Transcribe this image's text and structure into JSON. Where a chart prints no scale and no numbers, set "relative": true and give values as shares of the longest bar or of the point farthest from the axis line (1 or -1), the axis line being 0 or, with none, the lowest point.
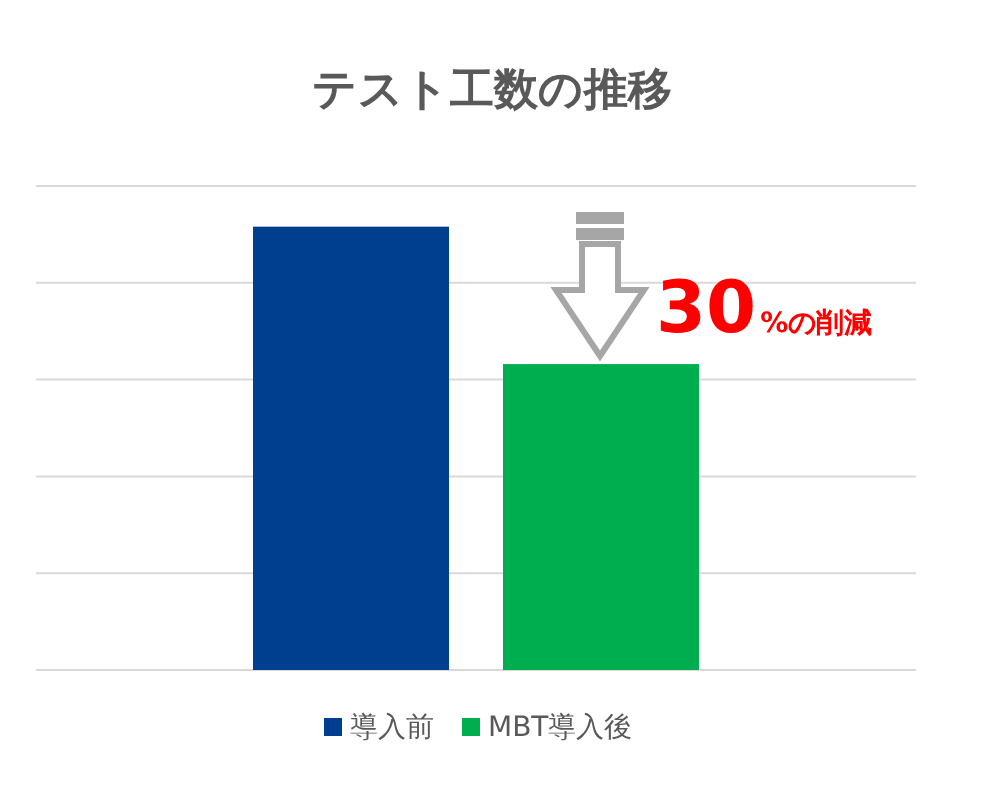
{
  "chart_data": {
    "type": "bar",
    "title": "テスト工数の推移",
    "categories": [
      null
    ],
    "relative": true,
    "grid": "y",
    "legend": "bottom",
    "series": [
      {
        "name": "導入前",
        "color": "#003f8f",
        "values": [
          1
        ]
      },
      {
        "name": "MBT導入後",
        "color": "#00ad4f",
        "values": [
          0.69
        ]
      }
    ],
    "annotations": [
      "30%の削減"
    ]
  }
}
